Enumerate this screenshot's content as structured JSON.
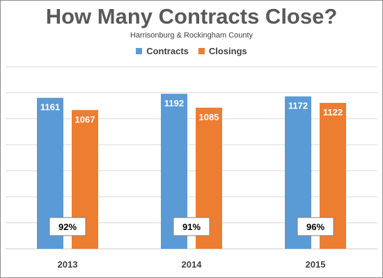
{
  "chart_data": {
    "type": "bar",
    "title": "How Many Contracts Close?",
    "subtitle": "Harrisonburg & Rockingham County",
    "categories": [
      "2013",
      "2014",
      "2015"
    ],
    "series": [
      {
        "name": "Contracts",
        "color": "#5b9bd5",
        "values": [
          1161,
          1192,
          1172
        ]
      },
      {
        "name": "Closings",
        "color": "#ed7d31",
        "values": [
          1067,
          1085,
          1122
        ]
      }
    ],
    "annotations": [
      "92%",
      "91%",
      "96%"
    ],
    "ylim": [
      0,
      1400
    ],
    "grid": true,
    "legend_position": "top-center",
    "xlabel": "",
    "ylabel": ""
  }
}
